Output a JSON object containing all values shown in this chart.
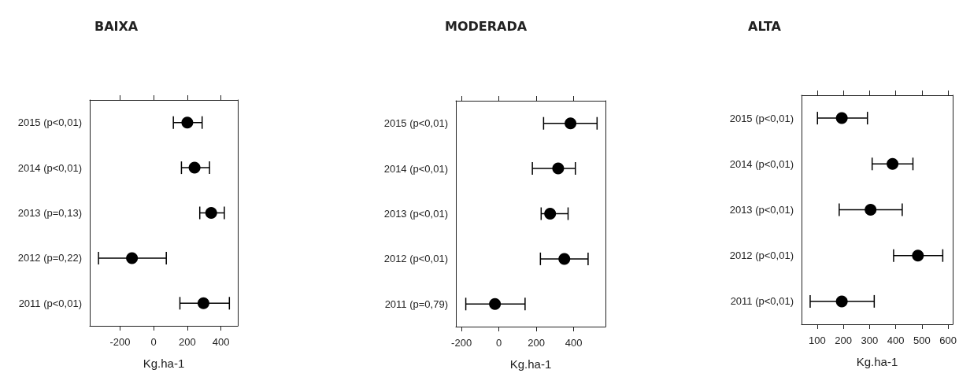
{
  "chart_data": [
    {
      "type": "scatter",
      "title": "BAIXA",
      "xlabel": "Kg.ha-1",
      "orientation": "horizontal",
      "marker": "circle",
      "grid": false,
      "categories": [
        "2015 (p<0,01)",
        "2014 (p<0,01)",
        "2013 (p=0,13)",
        "2012 (p=0,22)",
        "2011 (p<0,01)"
      ],
      "series": [
        {
          "color": "#000000",
          "values": [
            200,
            243,
            342,
            -129,
            296
          ],
          "errors": [
            [
              117,
              288
            ],
            [
              165,
              332
            ],
            [
              274,
              420
            ],
            [
              -328,
              75
            ],
            [
              156,
              450
            ]
          ]
        }
      ],
      "xlim": [
        -380,
        500
      ],
      "xticks": [
        -200,
        0,
        200,
        400
      ]
    },
    {
      "type": "scatter",
      "title": "MODERADA",
      "xlabel": "Kg.ha-1",
      "orientation": "horizontal",
      "marker": "circle",
      "grid": false,
      "categories": [
        "2015 (p<0,01)",
        "2014 (p<0,01)",
        "2013 (p<0,01)",
        "2012 (p<0,01)",
        "2011 (p=0,79)"
      ],
      "series": [
        {
          "color": "#000000",
          "values": [
            383,
            317,
            274,
            350,
            -21
          ],
          "errors": [
            [
              239,
              525
            ],
            [
              179,
              409
            ],
            [
              226,
              370
            ],
            [
              222,
              477
            ],
            [
              -177,
              140
            ]
          ]
        }
      ],
      "xlim": [
        -230,
        570
      ],
      "xticks": [
        -200,
        0,
        200,
        400
      ]
    },
    {
      "type": "scatter",
      "title": "ALTA",
      "xlabel": "Kg.ha-1",
      "orientation": "horizontal",
      "marker": "circle",
      "grid": false,
      "categories": [
        "2015 (p<0,01)",
        "2014 (p<0,01)",
        "2013 (p<0,01)",
        "2012 (p<0,01)",
        "2011 (p<0,01)"
      ],
      "series": [
        {
          "color": "#000000",
          "values": [
            194,
            388,
            304,
            485,
            194
          ],
          "errors": [
            [
              101,
              292
            ],
            [
              310,
              466
            ],
            [
              184,
              425
            ],
            [
              392,
              580
            ],
            [
              73,
              318
            ]
          ]
        }
      ],
      "xlim": [
        40,
        618
      ],
      "xticks": [
        100,
        200,
        300,
        400,
        500,
        600
      ]
    }
  ]
}
